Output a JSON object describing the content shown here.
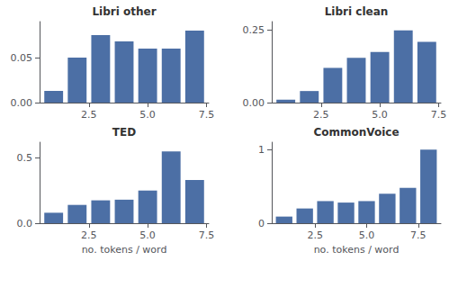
{
  "chart_data": [
    {
      "type": "bar",
      "title": "Libri other",
      "x": [
        1,
        2,
        3,
        4,
        5,
        6,
        7
      ],
      "values": [
        0.013,
        0.05,
        0.075,
        0.068,
        0.06,
        0.06,
        0.08
      ],
      "color": "#4C6FA5",
      "xlim": [
        0.4,
        7.6
      ],
      "xticks": [
        2.5,
        {
          "value": 5,
          "label": "5.0"
        },
        7.5
      ],
      "ylim": [
        0,
        0.09
      ],
      "yticks": [
        {
          "value": 0,
          "label": "0.00"
        },
        0.05
      ],
      "grid": false
    },
    {
      "type": "bar",
      "title": "Libri clean",
      "x": [
        1,
        2,
        3,
        4,
        5,
        6,
        7
      ],
      "values": [
        0.01,
        0.04,
        0.12,
        0.155,
        0.175,
        0.25,
        0.21
      ],
      "color": "#4C6FA5",
      "xlim": [
        0.4,
        7.6
      ],
      "xticks": [
        2.5,
        {
          "value": 5,
          "label": "5.0"
        },
        7.5
      ],
      "ylim": [
        0,
        0.28
      ],
      "yticks": [
        {
          "value": 0,
          "label": "0.00"
        },
        0.25
      ],
      "grid": false
    },
    {
      "type": "bar",
      "title": "TED",
      "xlabel": "no. tokens / word",
      "x": [
        1,
        2,
        3,
        4,
        5,
        6,
        7
      ],
      "values": [
        0.08,
        0.14,
        0.175,
        0.18,
        0.25,
        0.55,
        0.33
      ],
      "color": "#4C6FA5",
      "xlim": [
        0.4,
        7.6
      ],
      "xticks": [
        2.5,
        {
          "value": 5,
          "label": "5.0"
        },
        7.5
      ],
      "ylim": [
        0,
        0.62
      ],
      "yticks": [
        {
          "value": 0,
          "label": "0.0"
        },
        0.5
      ],
      "grid": false
    },
    {
      "type": "bar",
      "title": "CommonVoice",
      "xlabel": "no. tokens / word",
      "x": [
        1,
        2,
        3,
        4,
        5,
        6,
        7,
        8
      ],
      "values": [
        0.09,
        0.2,
        0.3,
        0.28,
        0.3,
        0.4,
        0.48,
        1.0
      ],
      "color": "#4C6FA5",
      "xlim": [
        0.4,
        8.6
      ],
      "xticks": [
        2.5,
        {
          "value": 5,
          "label": "5.0"
        },
        7.5
      ],
      "ylim": [
        0,
        1.1
      ],
      "yticks": [
        0,
        1
      ],
      "grid": false
    }
  ]
}
